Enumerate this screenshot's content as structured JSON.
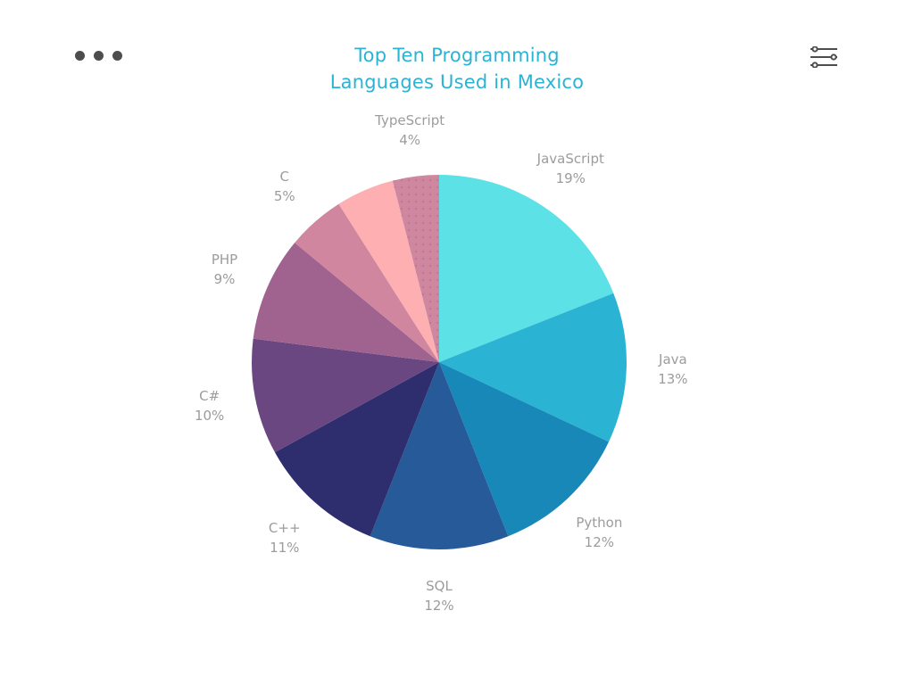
{
  "header": {
    "title_line1": "Top Ten Programming",
    "title_line2": "Languages Used in Mexico",
    "menu_icon": "more-horizontal-icon",
    "filter_icon": "sliders-icon"
  },
  "colors": {
    "title": "#2bb3d4",
    "label": "#9c9c9c",
    "icon": "#4d4d4d"
  },
  "chart_data": {
    "type": "pie",
    "title": "Top Ten Programming Languages Used in Mexico",
    "start_angle_deg": 0,
    "direction": "clockwise",
    "categories": [
      "JavaScript",
      "Java",
      "Python",
      "SQL",
      "C++",
      "C#",
      "PHP",
      "C",
      "",
      "TypeScript"
    ],
    "values": [
      19,
      13,
      12,
      12,
      11,
      10,
      9,
      5,
      5,
      4
    ],
    "labels": [
      "19%",
      "13%",
      "12%",
      "12%",
      "11%",
      "10%",
      "9%",
      "5%",
      "",
      "4%"
    ],
    "colors": [
      "#5ce1e6",
      "#2bb3d4",
      "#1888b9",
      "#275a99",
      "#2e2e6e",
      "#6b4782",
      "#a06390",
      "#d0869e",
      "#fdafb2",
      "#d0869e"
    ],
    "patterns": [
      "",
      "",
      "",
      "",
      "",
      "",
      "",
      "",
      "",
      "dots"
    ],
    "legend": "none",
    "data_labels": "outside"
  }
}
